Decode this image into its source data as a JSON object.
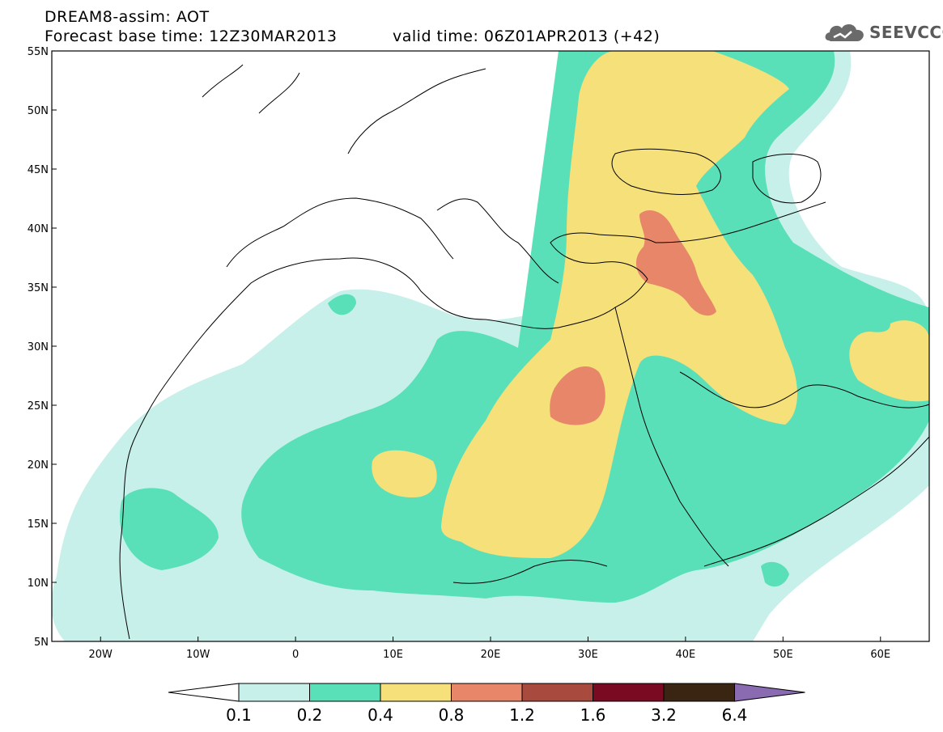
{
  "title": {
    "line1": "DREAM8-assim: AOT",
    "line2": "Forecast base time: 12Z30MAR2013",
    "valid": "valid time: 06Z01APR2013 (+42)"
  },
  "logo": {
    "text": "SEEVCCC",
    "icon": "cloud-icon"
  },
  "map": {
    "lon_range": [
      -25,
      65
    ],
    "lat_range": [
      5,
      55
    ],
    "lon_ticks": [
      {
        "value": -20,
        "label": "20W"
      },
      {
        "value": -10,
        "label": "10W"
      },
      {
        "value": 0,
        "label": "0"
      },
      {
        "value": 10,
        "label": "10E"
      },
      {
        "value": 20,
        "label": "20E"
      },
      {
        "value": 30,
        "label": "30E"
      },
      {
        "value": 40,
        "label": "40E"
      },
      {
        "value": 50,
        "label": "50E"
      },
      {
        "value": 60,
        "label": "60E"
      }
    ],
    "lat_ticks": [
      {
        "value": 55,
        "label": "55N"
      },
      {
        "value": 50,
        "label": "50N"
      },
      {
        "value": 45,
        "label": "45N"
      },
      {
        "value": 40,
        "label": "40N"
      },
      {
        "value": 35,
        "label": "35N"
      },
      {
        "value": 30,
        "label": "30N"
      },
      {
        "value": 25,
        "label": "25N"
      },
      {
        "value": 20,
        "label": "20N"
      },
      {
        "value": 15,
        "label": "15N"
      },
      {
        "value": 10,
        "label": "10N"
      },
      {
        "value": 5,
        "label": "5N"
      }
    ]
  },
  "colorbar": {
    "labels": [
      "0.1",
      "0.2",
      "0.4",
      "0.8",
      "1.2",
      "1.6",
      "3.2",
      "6.4"
    ],
    "under_color": "#ffffff",
    "colors": [
      "#c8f0ea",
      "#5ae0b8",
      "#f5e07a",
      "#e8866a",
      "#a84a3e",
      "#7a0a22",
      "#3a2412"
    ],
    "over_color": "#8a6ab0"
  },
  "chart_data": {
    "type": "heatmap",
    "title": "DREAM8-assim: AOT",
    "variable": "AOT",
    "levels": [
      0.1,
      0.2,
      0.4,
      0.8,
      1.2,
      1.6,
      3.2,
      6.4
    ],
    "xlim": [
      -25,
      65
    ],
    "ylim": [
      5,
      55
    ]
  }
}
